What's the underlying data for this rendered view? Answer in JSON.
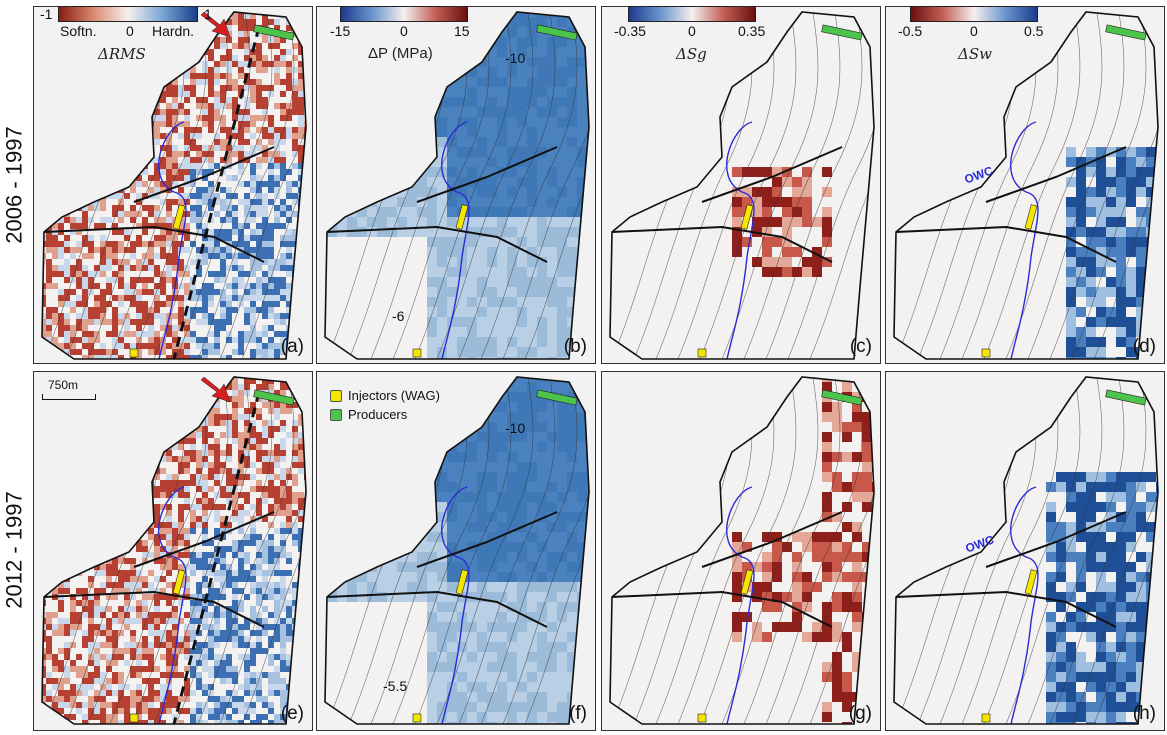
{
  "row_labels": [
    "2006 - 1997",
    "2012 - 1997"
  ],
  "colorbars": {
    "rms": {
      "min": "-1",
      "max": "1",
      "left_text": "Softn.",
      "mid": "0",
      "right_text": "Hardn.",
      "variable": "ΔRMS"
    },
    "pressure": {
      "min": "-15",
      "mid": "0",
      "max": "15",
      "variable": "ΔP (MPa)"
    },
    "sg": {
      "min": "-0.35",
      "mid": "0",
      "max": "0.35",
      "variable": "ΔSg"
    },
    "sw": {
      "min": "-0.5",
      "mid": "0",
      "max": "0.5",
      "variable": "ΔSw"
    }
  },
  "panel_labels": [
    "(a)",
    "(b)",
    "(c)",
    "(d)",
    "(e)",
    "(f)",
    "(g)",
    "(h)"
  ],
  "contour_labels": {
    "b_top": "-10",
    "b_bottom": "-6",
    "f_top": "-10",
    "f_bottom": "-5.5"
  },
  "owc_label": "OWC",
  "legend": {
    "injectors": "Injectors (WAG)",
    "producers": "Producers"
  },
  "scale_bar": "750m",
  "colors": {
    "injector": "#f5e600",
    "producer": "#4cc44c",
    "hardening": "#1f5fa8",
    "softening": "#a3281e",
    "owc": "#2a2ad8"
  },
  "icons": [
    "red-arrow-icon"
  ]
}
